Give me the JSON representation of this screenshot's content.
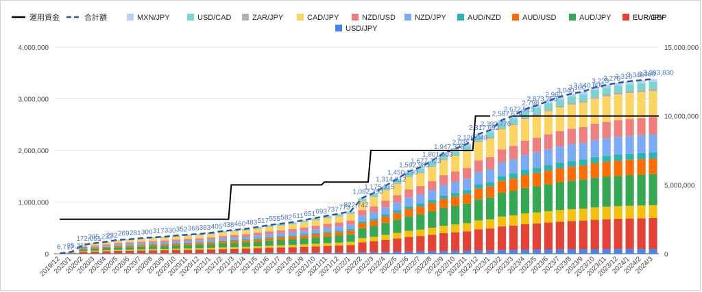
{
  "chart_data": {
    "type": "bar",
    "stacked": true,
    "legend_position": "top",
    "grid": true,
    "categories": [
      "2019/12",
      "2020/1",
      "2020/2",
      "2020/3",
      "2020/4",
      "2020/5",
      "2020/6",
      "2020/7",
      "2020/8",
      "2020/9",
      "2020/10",
      "2020/11",
      "2020/12",
      "2021/1",
      "2021/2",
      "2021/3",
      "2021/4",
      "2021/5",
      "2021/6",
      "2021/7",
      "2021/8",
      "2021/9",
      "2021/10",
      "2021/11",
      "2021/12",
      "2022/1",
      "2022/2",
      "2022/3",
      "2022/4",
      "2022/5",
      "2022/6",
      "2022/7",
      "2022/8",
      "2022/9",
      "2022/10",
      "2022/11",
      "2022/12",
      "2023/1",
      "2023/2",
      "2023/3",
      "2023/4",
      "2023/5",
      "2023/6",
      "2023/7",
      "2023/8",
      "2023/9",
      "2023/10",
      "2023/11",
      "2023/12",
      "2024/1",
      "2024/2",
      "2024/3"
    ],
    "x_tick_labels": [
      "2019/12",
      "2020/1",
      "2020/2",
      "2020/3",
      "2020/4",
      "2020/5",
      "2020/6",
      "2020/7",
      "2020/8",
      "2020/9",
      "2020/10",
      "2020/11",
      "2020/12",
      "2021/1",
      "2021/2",
      "2021/3",
      "2021/4",
      "2021/5",
      "2021/6",
      "2021/7",
      "2021/8",
      "2021/9",
      "2021/10",
      "2021/11",
      "2021/12",
      "2022/1",
      "2022/2",
      "2022/3",
      "2022/4",
      "2022/5",
      "2022/6",
      "2022/7",
      "2022/8",
      "2022/9",
      "2022/10",
      "2022/11",
      "2022/12",
      "2023/1",
      "2023/2",
      "2023/3",
      "2023/4",
      "2023/5",
      "2023/6",
      "2023/7",
      "2023/8",
      "2023/9",
      "2023/10",
      "2023/11",
      "2023/12",
      "2024/1",
      "2024/2",
      "2024/3"
    ],
    "y_left": {
      "ticks": [
        "0",
        "1,000,000",
        "2,000,000",
        "3,000,000",
        "4,000,000"
      ],
      "min": 0,
      "max": 4000000
    },
    "y_right": {
      "ticks": [
        "0",
        "5,000,000",
        "10,000,000",
        "15,000,000"
      ],
      "min": 0,
      "max": 15000000
    },
    "totals": [
      6717,
      35211,
      172051,
      205232,
      232000,
      269000,
      281000,
      300000,
      317000,
      330000,
      352000,
      368000,
      383000,
      405000,
      438000,
      460000,
      483000,
      517000,
      555000,
      582000,
      611000,
      651000,
      693000,
      737000,
      773000,
      822742,
      1082390,
      1175315,
      1314812,
      1450290,
      1592985,
      1677323,
      1801503,
      1947378,
      2035000,
      2126048,
      2317692,
      2392776,
      2587614,
      2672525,
      2798000,
      2873255,
      2960000,
      3040000,
      3100000,
      3140600,
      3223000,
      3270000,
      3310000,
      3340000,
      3360000,
      3383830
    ],
    "total_labels": [
      "6,717",
      "35,211",
      "172,051",
      "205,232",
      "232",
      "269",
      "281",
      "300",
      "317",
      "330",
      "352",
      "368",
      "383",
      "405",
      "438",
      "460",
      "483",
      "517",
      "555",
      "582",
      "611",
      "651",
      "693",
      "737",
      "773",
      "822,742",
      "1,082,390",
      "1,175,315",
      "1,314,812",
      "1,450,290",
      "1,592,985",
      "1,677,323",
      "1,801,503",
      "1,947,378",
      "2,035",
      "2,126,048",
      "2,317,692",
      "2,392,776",
      "2,587,614",
      "2,672,525",
      "2,798",
      "2,873,255",
      "2,960",
      "3,040",
      "3,100",
      "3,140,600",
      "3,223",
      "3,270",
      "3,310",
      "3,340",
      "3,360",
      "3,383,830"
    ],
    "invested": [
      2500000,
      2500000,
      2500000,
      2500000,
      2500000,
      2500000,
      2500000,
      2500000,
      2500000,
      2500000,
      2500000,
      2500000,
      2500000,
      2500000,
      2500000,
      5000000,
      5000000,
      5000000,
      5000000,
      5000000,
      5000000,
      5000000,
      5000000,
      5200000,
      5200000,
      5200000,
      5200000,
      7500000,
      7500000,
      7500000,
      7500000,
      7500000,
      7500000,
      7500000,
      7500000,
      7500000,
      10000000,
      10000000,
      10000000,
      10000000,
      10000000,
      10000000,
      10000000,
      10000000,
      10000000,
      10000000,
      10000000,
      10000000,
      10000000,
      10000000,
      10000000,
      10000000
    ],
    "invested_visible_to_index": 37,
    "total_line_name": "合計額",
    "invested_line_name": "運用資金",
    "total_line_color": "#2f5597",
    "invested_line_color": "#000000",
    "series": [
      {
        "name": "USD/JPY",
        "color": "#4285f4"
      },
      {
        "name": "EUR/JPY",
        "color": "#e34234"
      },
      {
        "name": "EUR/GBP",
        "color": "#f4c20d"
      },
      {
        "name": "AUD/JPY",
        "color": "#34a853"
      },
      {
        "name": "AUD/USD",
        "color": "#ff6d01"
      },
      {
        "name": "AUD/NZD",
        "color": "#2bb5b0"
      },
      {
        "name": "NZD/JPY",
        "color": "#7baaf7"
      },
      {
        "name": "NZD/USD",
        "color": "#ef7f7f"
      },
      {
        "name": "CAD/JPY",
        "color": "#fcd462"
      },
      {
        "name": "ZAR/JPY",
        "color": "#b0b0b0"
      },
      {
        "name": "USD/CAD",
        "color": "#76d7d1"
      },
      {
        "name": "MXN/JPY",
        "color": "#b9cff7"
      }
    ],
    "final_composition": [
      90000,
      600000,
      250000,
      600000,
      300000,
      120000,
      350000,
      330000,
      510000,
      40000,
      130000,
      60000
    ]
  }
}
